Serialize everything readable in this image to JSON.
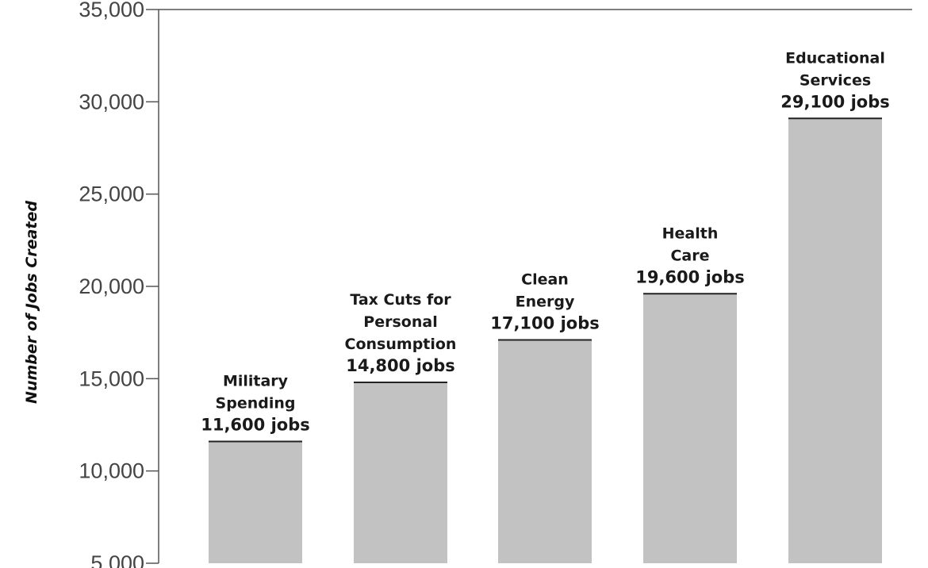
{
  "chart_data": {
    "type": "bar",
    "title": "",
    "xlabel": "",
    "ylabel": "Number of Jobs Created",
    "ylim": [
      5000,
      35000
    ],
    "yticks": [
      5000,
      10000,
      15000,
      20000,
      25000,
      30000,
      35000
    ],
    "ytick_labels": [
      "5,000",
      "10,000",
      "15,000",
      "20,000",
      "25,000",
      "30,000",
      "35,000"
    ],
    "grid": false,
    "legend": "none",
    "bar_color": "#c2c2c2",
    "categories": [
      "Military Spending",
      "Tax Cuts for Personal Consumption",
      "Clean Energy",
      "Health Care",
      "Educational Services"
    ],
    "values": [
      11600,
      14800,
      17100,
      19600,
      29100
    ],
    "data_labels": [
      {
        "name_lines": [
          "Military",
          "Spending"
        ],
        "value_label": "11,600 jobs"
      },
      {
        "name_lines": [
          "Tax Cuts for",
          "Personal",
          "Consumption"
        ],
        "value_label": "14,800 jobs"
      },
      {
        "name_lines": [
          "Clean",
          "Energy"
        ],
        "value_label": "17,100 jobs"
      },
      {
        "name_lines": [
          "Health",
          "Care"
        ],
        "value_label": "19,600 jobs"
      },
      {
        "name_lines": [
          "Educational",
          "Services"
        ],
        "value_label": "29,100 jobs"
      }
    ]
  }
}
